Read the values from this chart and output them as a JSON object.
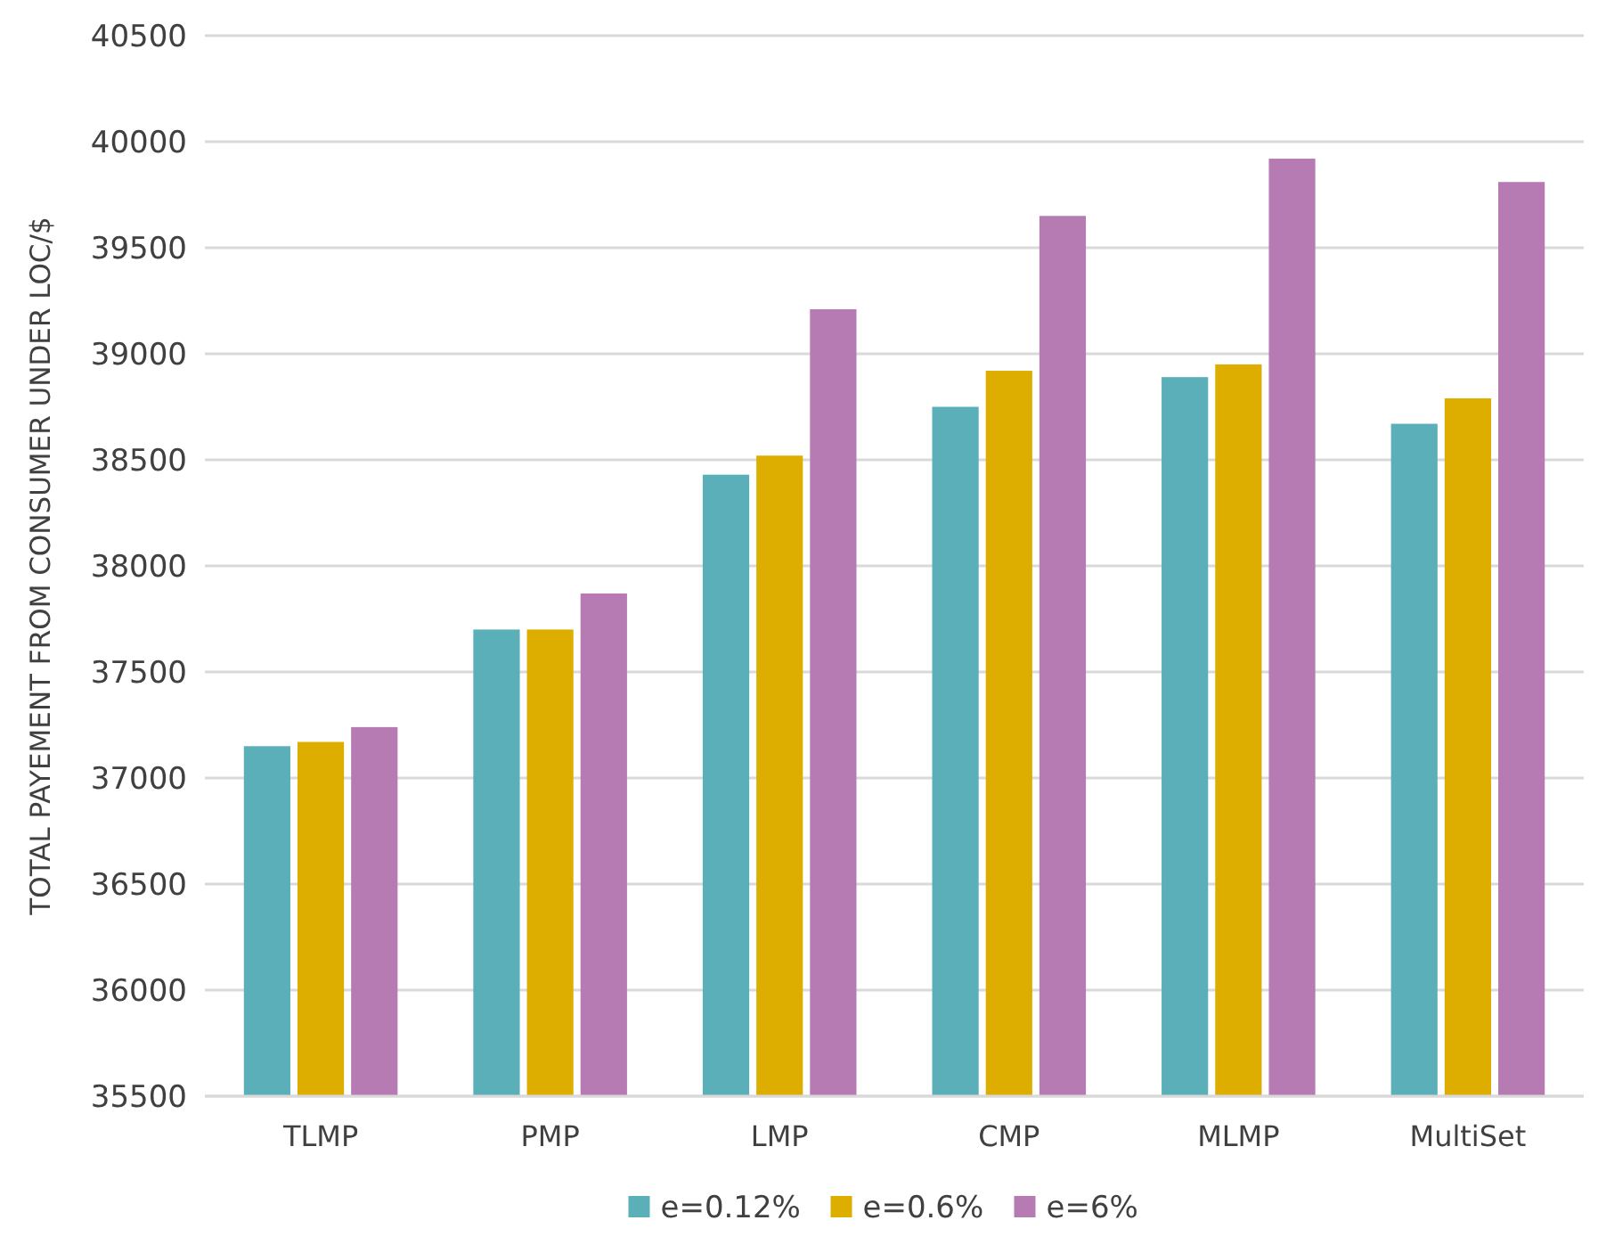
{
  "chart_data": {
    "type": "bar",
    "ylabel": "TOTAL PAYEMENT FROM CONSUMER UNDER LOC/$",
    "categories": [
      "TLMP",
      "PMP",
      "LMP",
      "CMP",
      "MLMP",
      "MultiSet"
    ],
    "series": [
      {
        "name": "e=0.12%",
        "color": "#5aafb9",
        "values": [
          37150,
          37700,
          38430,
          38750,
          38890,
          38670
        ]
      },
      {
        "name": "e=0.6%",
        "color": "#ddae00",
        "values": [
          37170,
          37700,
          38520,
          38920,
          38950,
          38790
        ]
      },
      {
        "name": "e=6%",
        "color": "#b77bb4",
        "values": [
          37240,
          37870,
          39210,
          39650,
          39920,
          39810
        ]
      }
    ],
    "ylim": [
      35500,
      40500
    ],
    "yticks": [
      35500,
      36000,
      36500,
      37000,
      37500,
      38000,
      38500,
      39000,
      39500,
      40000,
      40500
    ],
    "grid": "y",
    "legend": "bottom"
  }
}
